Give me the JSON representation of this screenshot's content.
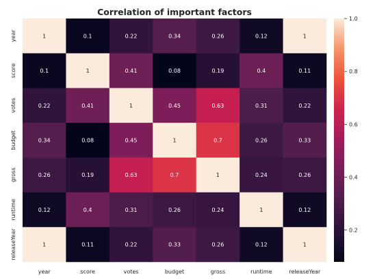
{
  "chart_data": {
    "type": "heatmap",
    "title": "Correlation of important factors",
    "row_labels": [
      "year",
      "score",
      "votes",
      "budget",
      "gross",
      "runtime",
      "releaseYear"
    ],
    "col_labels": [
      "year",
      "score",
      "votes",
      "budget",
      "gross",
      "runtime",
      "releaseYear"
    ],
    "values": [
      [
        1,
        0.1,
        0.22,
        0.34,
        0.26,
        0.12,
        1
      ],
      [
        0.1,
        1,
        0.41,
        0.08,
        0.19,
        0.4,
        0.11
      ],
      [
        0.22,
        0.41,
        1,
        0.45,
        0.63,
        0.31,
        0.22
      ],
      [
        0.34,
        0.08,
        0.45,
        1,
        0.7,
        0.26,
        0.33
      ],
      [
        0.26,
        0.19,
        0.63,
        0.7,
        1,
        0.24,
        0.26
      ],
      [
        0.12,
        0.4,
        0.31,
        0.26,
        0.24,
        1,
        0.12
      ],
      [
        1,
        0.11,
        0.22,
        0.33,
        0.26,
        0.12,
        1
      ]
    ],
    "colorbar": {
      "range": [
        0.08,
        1.0
      ],
      "ticks": [
        0.2,
        0.4,
        0.6,
        0.8,
        1.0
      ],
      "tick_labels": [
        "0.2",
        "0.4",
        "0.6",
        "0.8",
        "1.0"
      ],
      "colormap": "rocket"
    },
    "annotations": true,
    "grid": false
  }
}
